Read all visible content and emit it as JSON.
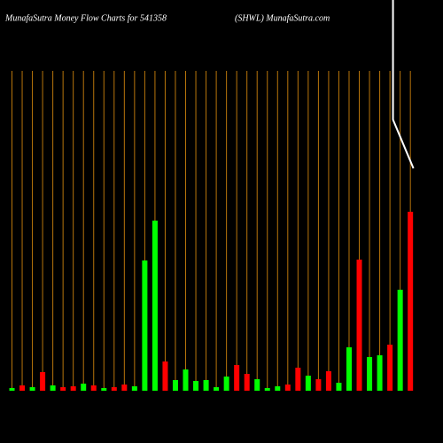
{
  "chart_data": {
    "type": "bar",
    "title": "MunafaSutra  Money Flow  Charts for 541358",
    "subtitle": "(SHWL) MunafaSutra.com",
    "values": [
      3,
      6,
      4,
      21,
      6,
      4,
      5,
      8,
      6,
      3,
      4,
      7,
      5,
      147,
      192,
      33,
      12,
      24,
      11,
      12,
      4,
      16,
      29,
      19,
      13,
      3,
      5,
      7,
      26,
      17,
      13,
      22,
      9,
      49,
      148,
      38,
      40,
      52,
      114,
      202
    ],
    "colors": [
      "#00ff00",
      "#ff0000",
      "#00ff00",
      "#ff0000",
      "#00ff00",
      "#ff0000",
      "#ff0000",
      "#00ff00",
      "#ff0000",
      "#00ff00",
      "#ff0000",
      "#ff0000",
      "#00ff00",
      "#00ff00",
      "#00ff00",
      "#ff0000",
      "#00ff00",
      "#00ff00",
      "#00ff00",
      "#00ff00",
      "#00ff00",
      "#00ff00",
      "#ff0000",
      "#ff0000",
      "#00ff00",
      "#00ff00",
      "#00ff00",
      "#ff0000",
      "#ff0000",
      "#00ff00",
      "#ff0000",
      "#ff0000",
      "#00ff00",
      "#00ff00",
      "#ff0000",
      "#00ff00",
      "#00ff00",
      "#ff0000",
      "#00ff00",
      "#ff0000"
    ],
    "ylim": [
      0,
      441
    ],
    "grid": true,
    "grid_color": "#b8750b",
    "line": {
      "color": "#ffffff",
      "x": [
        37.3,
        37.3,
        39.3
      ],
      "values": [
        441,
        306,
        251
      ]
    }
  }
}
